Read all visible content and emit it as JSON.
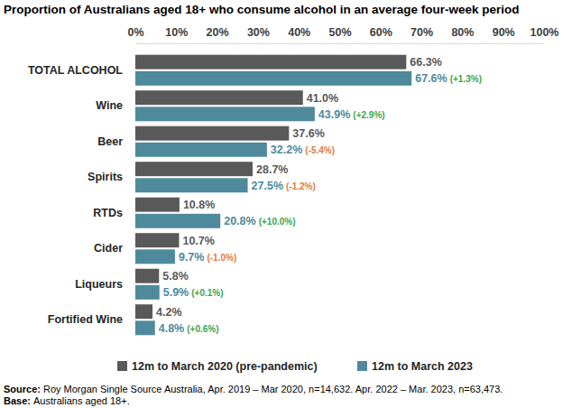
{
  "chart_data": {
    "type": "bar",
    "title": "Proportion of Australians aged 18+ who consume alcohol in an average four-week period",
    "orientation": "horizontal",
    "data_labels": true,
    "grid": false,
    "legend": "bottom",
    "categories": [
      "TOTAL ALCOHOL",
      "Wine",
      "Beer",
      "Spirits",
      "RTDs",
      "Cider",
      "Liqueurs",
      "Fortified Wine"
    ],
    "series": [
      {
        "name": "12m to March 2020 (pre-pandemic)",
        "color": "#595959",
        "values": [
          66.3,
          41.0,
          37.6,
          28.7,
          10.8,
          10.7,
          5.8,
          4.2
        ],
        "value_labels": [
          "66.3%",
          "41.0%",
          "37.6%",
          "28.7%",
          "10.8%",
          "10.7%",
          "5.8%",
          "4.2%"
        ]
      },
      {
        "name": "12m to March 2023",
        "color": "#4e8a9c",
        "values": [
          67.6,
          43.9,
          32.2,
          27.5,
          20.8,
          9.7,
          5.9,
          4.8
        ],
        "value_labels": [
          "67.6%",
          "43.9%",
          "32.2%",
          "27.5%",
          "20.8%",
          "9.7%",
          "5.9%",
          "4.8%"
        ],
        "changes": [
          1.3,
          2.9,
          -5.4,
          -1.2,
          10.0,
          -1.0,
          0.1,
          0.6
        ],
        "change_labels": [
          "(+1.3%)",
          "(+2.9%)",
          "(-5.4%)",
          "(-1.2%)",
          "(+10.0%)",
          "(-1.0%)",
          "(+0.1%)",
          "(+0.6%)"
        ]
      }
    ],
    "xlim": [
      0,
      100
    ],
    "xticks": [
      {
        "value": 0,
        "label": "0%"
      },
      {
        "value": 10,
        "label": "10%"
      },
      {
        "value": 20,
        "label": "20%"
      },
      {
        "value": 30,
        "label": "30%"
      },
      {
        "value": 40,
        "label": "40%"
      },
      {
        "value": 50,
        "label": "50%"
      },
      {
        "value": 60,
        "label": "60%"
      },
      {
        "value": 70,
        "label": "70%"
      },
      {
        "value": 80,
        "label": "80%"
      },
      {
        "value": 90,
        "label": "90%"
      },
      {
        "value": 100,
        "label": "100%"
      }
    ],
    "footnotes": [
      {
        "label": "Source:",
        "text": "Roy Morgan Single Source Australia, Apr. 2019 – Mar 2020, n=14,632. Apr. 2022 – Mar. 2023, n=63,473."
      },
      {
        "label": "Base:",
        "text": "Australians aged 18+."
      }
    ]
  }
}
